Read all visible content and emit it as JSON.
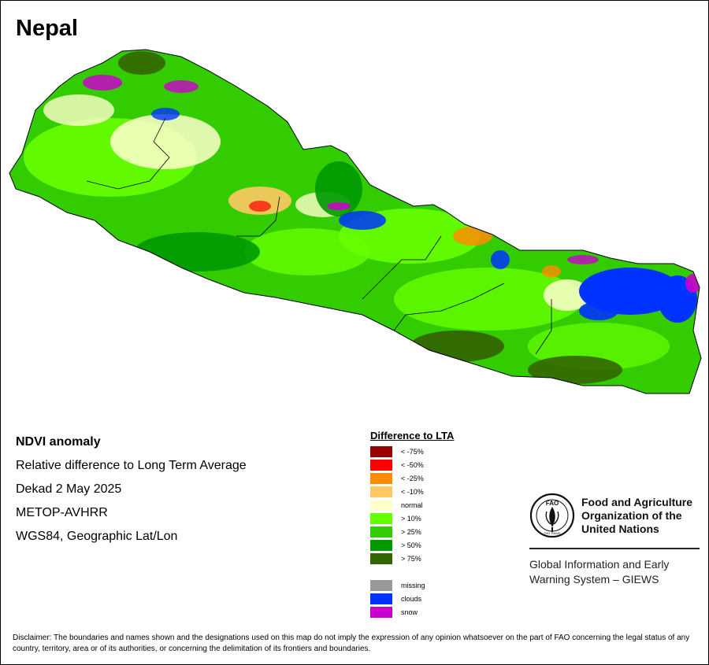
{
  "map": {
    "title": "Nepal"
  },
  "info": {
    "line1": "NDVI anomaly",
    "line2": "Relative difference to Long Term Average",
    "line3": "Dekad 2 May 2025",
    "line4": "METOP-AVHRR",
    "line5": "WGS84, Geographic Lat/Lon"
  },
  "legend": {
    "title": "Difference to LTA",
    "classes": [
      {
        "label": "< -75%",
        "color": "#990000"
      },
      {
        "label": "< -50%",
        "color": "#ff0000"
      },
      {
        "label": "< -25%",
        "color": "#ff8c00"
      },
      {
        "label": "< -10%",
        "color": "#ffc864"
      },
      {
        "label": "normal",
        "color": "#ffffcc"
      },
      {
        "label": "> 10%",
        "color": "#66ff00"
      },
      {
        "label": "> 25%",
        "color": "#33cc00"
      },
      {
        "label": "> 50%",
        "color": "#009900"
      },
      {
        "label": "> 75%",
        "color": "#336600"
      }
    ],
    "special": [
      {
        "label": "missing",
        "color": "#999999"
      },
      {
        "label": "clouds",
        "color": "#0033ff"
      },
      {
        "label": "snow",
        "color": "#cc00cc"
      }
    ]
  },
  "fao": {
    "logo_text": "FAO",
    "logo_motto": "FIAT PANIS",
    "name": "Food and Agriculture Organization of the United Nations",
    "giews": "Global Information and Early Warning System – GIEWS"
  },
  "disclaimer": "Disclaimer: The boundaries and names shown and the designations used on this map do not imply the expression of any opinion whatsoever on the part of FAO concerning the legal status of any country, territory, area or of its authorities, or concerning the delimitation of its frontiers and boundaries."
}
